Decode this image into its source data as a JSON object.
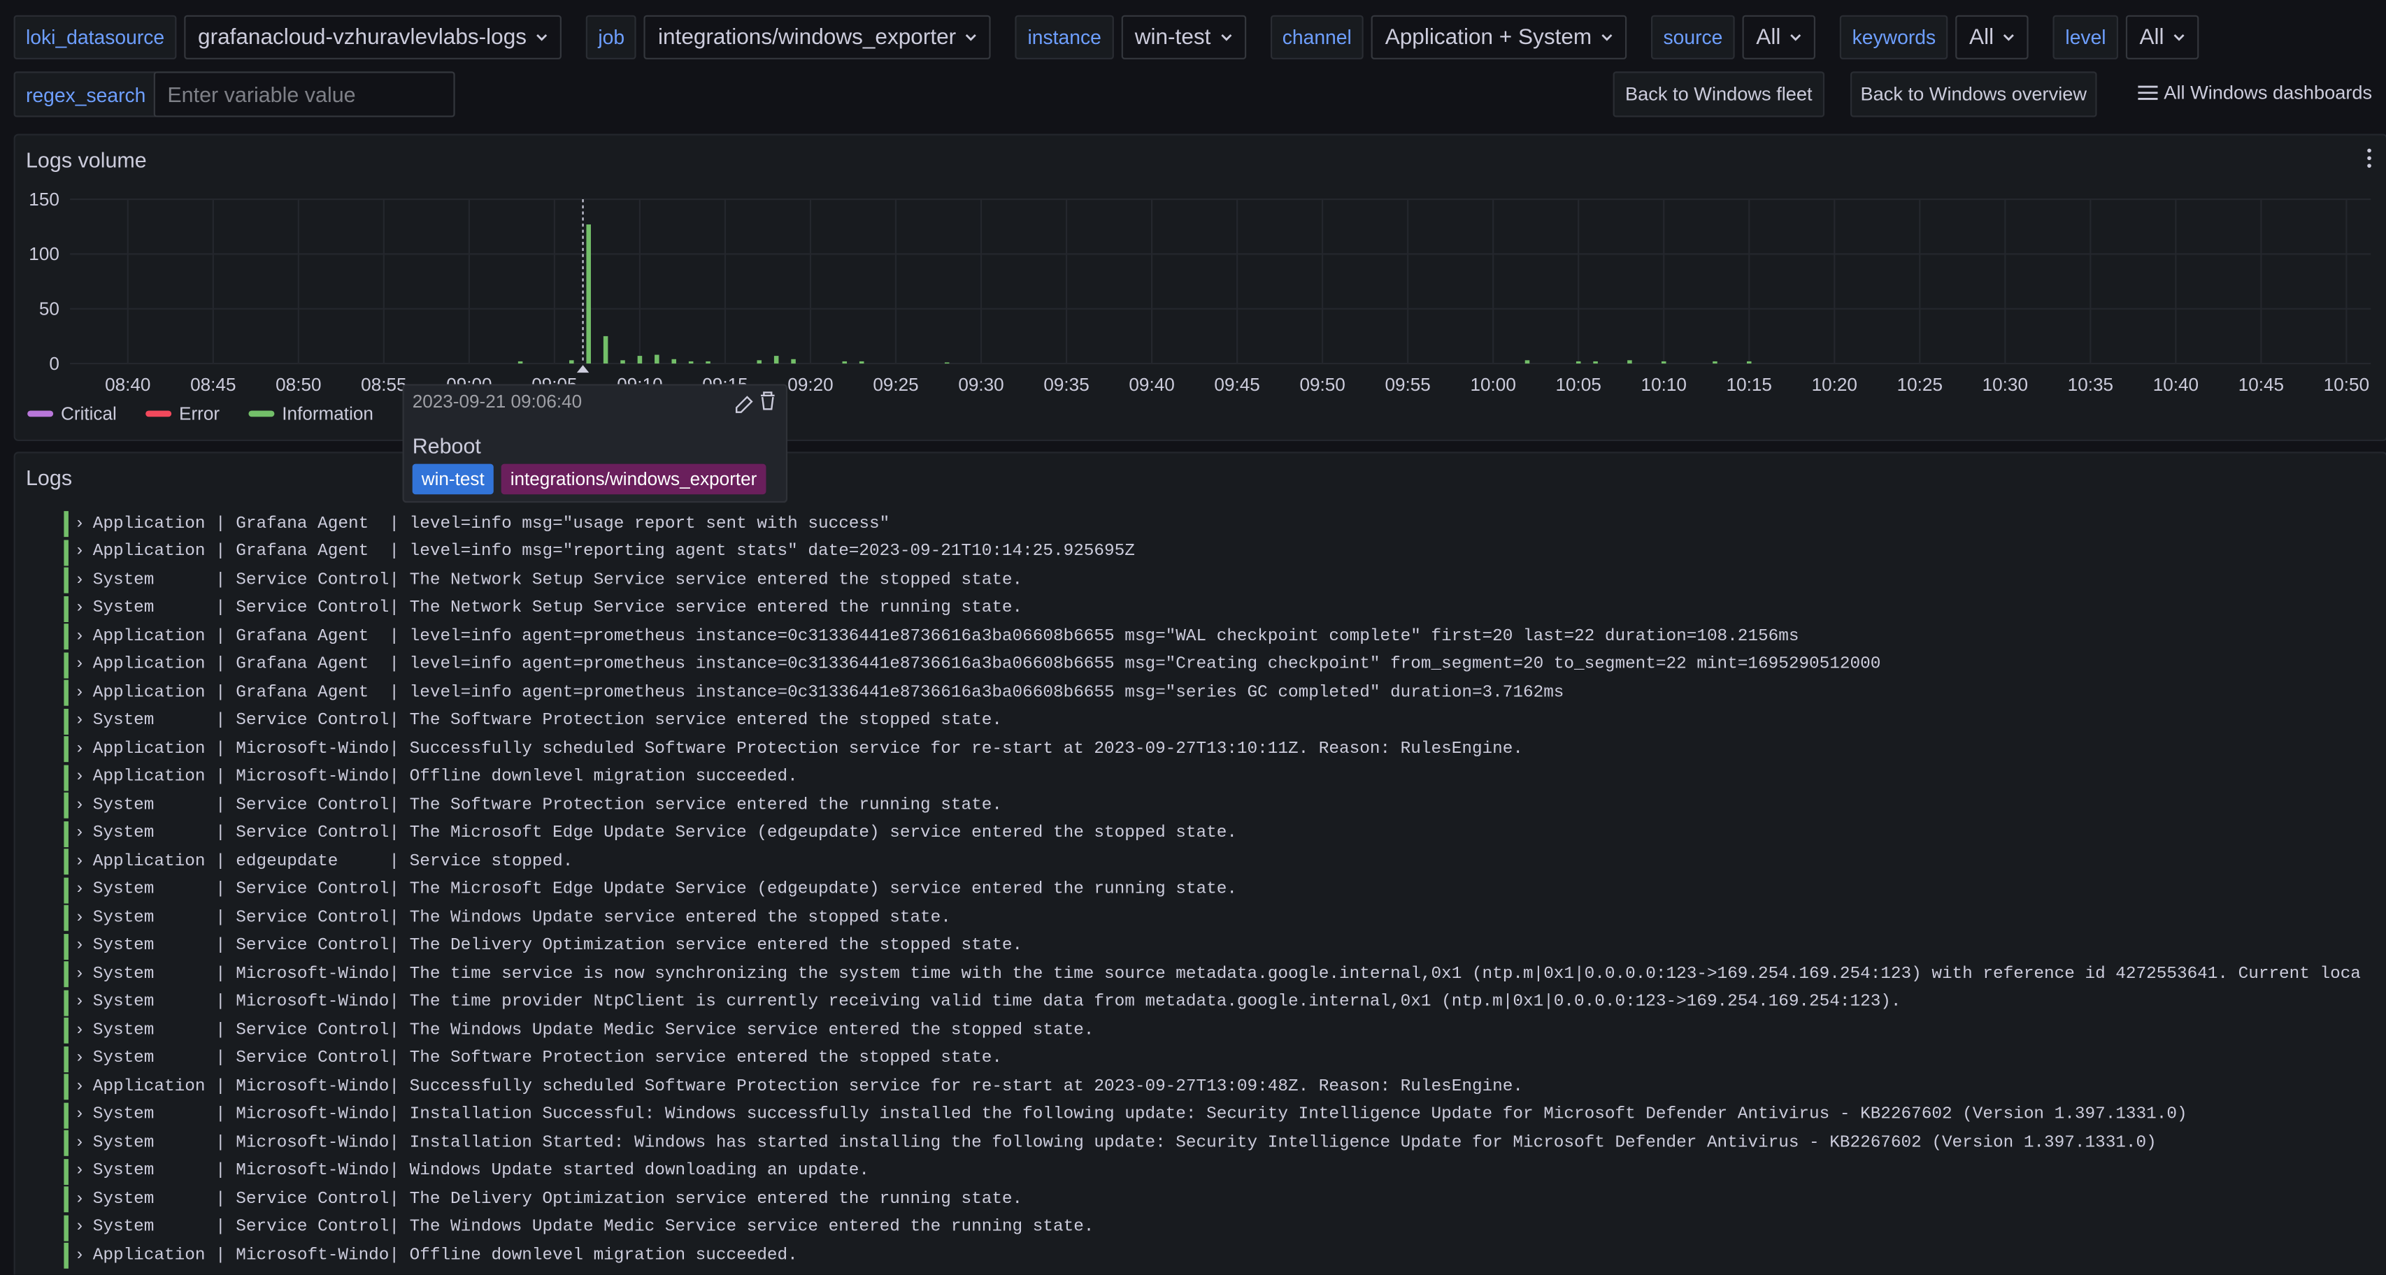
{
  "variables": [
    {
      "label": "loki_datasource",
      "value": "grafanacloud-vzhuravlevlabs-logs"
    },
    {
      "label": "job",
      "value": "integrations/windows_exporter"
    },
    {
      "label": "instance",
      "value": "win-test"
    },
    {
      "label": "channel",
      "value": "Application + System"
    },
    {
      "label": "source",
      "value": "All"
    },
    {
      "label": "keywords",
      "value": "All"
    },
    {
      "label": "level",
      "value": "All"
    }
  ],
  "regex_search": {
    "label": "regex_search",
    "placeholder": "Enter variable value"
  },
  "links": [
    "Back to Windows fleet",
    "Back to Windows overview",
    "All Windows dashboards"
  ],
  "chart_data": {
    "type": "bar",
    "title": "Logs volume",
    "x": [
      "09:03",
      "09:06",
      "09:07",
      "09:08",
      "09:09",
      "09:10",
      "09:11",
      "09:12",
      "09:13",
      "09:14",
      "09:17",
      "09:18",
      "09:19",
      "09:22",
      "09:23",
      "09:28",
      "10:02",
      "10:05",
      "10:06",
      "10:08",
      "10:10",
      "10:13",
      "10:15"
    ],
    "series": [
      {
        "name": "Critical",
        "color": "#b877d9",
        "values": [
          0,
          0,
          0,
          0,
          0,
          0,
          0,
          0,
          0,
          0,
          0,
          0,
          0,
          0,
          0,
          0,
          0,
          0,
          0,
          0,
          0,
          0,
          0
        ]
      },
      {
        "name": "Error",
        "color": "#f2495c",
        "values": [
          0,
          0,
          0,
          0,
          0,
          0,
          0,
          0,
          0,
          0,
          0,
          0,
          0,
          0,
          0,
          0,
          0,
          0,
          0,
          0,
          0,
          0,
          0
        ]
      },
      {
        "name": "Information",
        "color": "#73bf69",
        "values": [
          2,
          3,
          127,
          25,
          3,
          7,
          8,
          4,
          2,
          2,
          3,
          7,
          4,
          2,
          2,
          1,
          3,
          2,
          2,
          3,
          2,
          2,
          2
        ]
      }
    ],
    "xlim": [
      "08:40",
      "10:50"
    ],
    "xticks": [
      "08:40",
      "08:45",
      "08:50",
      "08:55",
      "09:00",
      "09:05",
      "09:10",
      "09:15",
      "09:20",
      "09:25",
      "09:30",
      "09:35",
      "09:40",
      "09:45",
      "09:50",
      "09:55",
      "10:00",
      "10:05",
      "10:10",
      "10:15",
      "10:20",
      "10:25",
      "10:30",
      "10:35",
      "10:40",
      "10:45",
      "10:50"
    ],
    "ylim": [
      0,
      150
    ],
    "yticks": [
      0,
      50,
      100,
      150
    ],
    "grid": true,
    "stacked": true,
    "annotation": {
      "x": "2023-09-21 09:06:40",
      "text": "Reboot",
      "tags": [
        "win-test",
        "integrations/windows_exporter"
      ]
    }
  },
  "logs": {
    "title": "Logs",
    "lines": [
      "Application | Grafana Agent  | level=info msg=\"usage report sent with success\"",
      "Application | Grafana Agent  | level=info msg=\"reporting agent stats\" date=2023-09-21T10:14:25.925695Z",
      "System      | Service Control| The Network Setup Service service entered the stopped state.",
      "System      | Service Control| The Network Setup Service service entered the running state.",
      "Application | Grafana Agent  | level=info agent=prometheus instance=0c31336441e8736616a3ba06608b6655 msg=\"WAL checkpoint complete\" first=20 last=22 duration=108.2156ms",
      "Application | Grafana Agent  | level=info agent=prometheus instance=0c31336441e8736616a3ba06608b6655 msg=\"Creating checkpoint\" from_segment=20 to_segment=22 mint=1695290512000",
      "Application | Grafana Agent  | level=info agent=prometheus instance=0c31336441e8736616a3ba06608b6655 msg=\"series GC completed\" duration=3.7162ms",
      "System      | Service Control| The Software Protection service entered the stopped state.",
      "Application | Microsoft-Windo| Successfully scheduled Software Protection service for re-start at 2023-09-27T13:10:11Z. Reason: RulesEngine.",
      "Application | Microsoft-Windo| Offline downlevel migration succeeded.",
      "System      | Service Control| The Software Protection service entered the running state.",
      "System      | Service Control| The Microsoft Edge Update Service (edgeupdate) service entered the stopped state.",
      "Application | edgeupdate     | Service stopped.",
      "System      | Service Control| The Microsoft Edge Update Service (edgeupdate) service entered the running state.",
      "System      | Service Control| The Windows Update service entered the stopped state.",
      "System      | Service Control| The Delivery Optimization service entered the stopped state.",
      "System      | Microsoft-Windo| The time service is now synchronizing the system time with the time source metadata.google.internal,0x1 (ntp.m|0x1|0.0.0.0:123->169.254.169.254:123) with reference id 4272553641. Current loca",
      "System      | Microsoft-Windo| The time provider NtpClient is currently receiving valid time data from metadata.google.internal,0x1 (ntp.m|0x1|0.0.0.0:123->169.254.169.254:123).",
      "System      | Service Control| The Windows Update Medic Service service entered the stopped state.",
      "System      | Service Control| The Software Protection service entered the stopped state.",
      "Application | Microsoft-Windo| Successfully scheduled Software Protection service for re-start at 2023-09-27T13:09:48Z. Reason: RulesEngine.",
      "System      | Microsoft-Windo| Installation Successful: Windows successfully installed the following update: Security Intelligence Update for Microsoft Defender Antivirus - KB2267602 (Version 1.397.1331.0)",
      "System      | Microsoft-Windo| Installation Started: Windows has started installing the following update: Security Intelligence Update for Microsoft Defender Antivirus - KB2267602 (Version 1.397.1331.0)",
      "System      | Microsoft-Windo| Windows Update started downloading an update.",
      "System      | Service Control| The Delivery Optimization service entered the running state.",
      "System      | Service Control| The Windows Update Medic Service service entered the running state.",
      "Application | Microsoft-Windo| Offline downlevel migration succeeded."
    ]
  }
}
